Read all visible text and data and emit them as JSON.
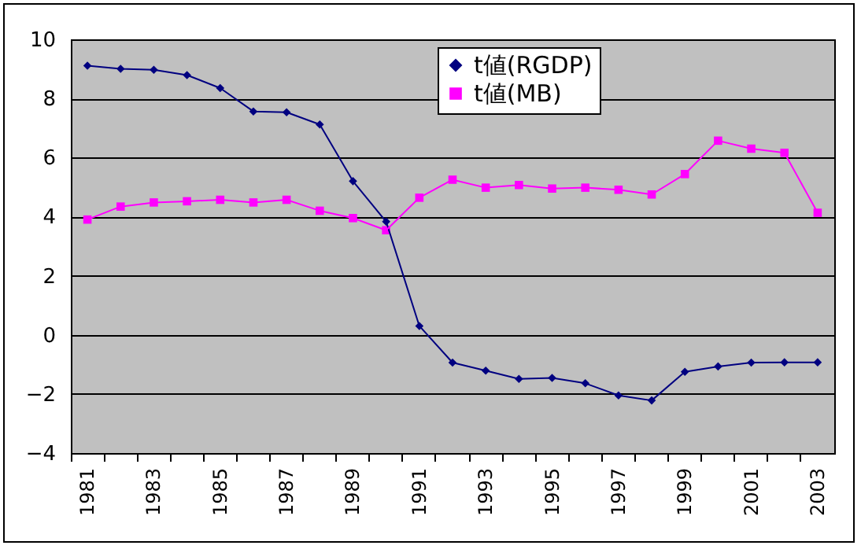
{
  "chart_data": {
    "type": "line",
    "categories": [
      "1981",
      null,
      "1983",
      null,
      "1985",
      null,
      "1987",
      null,
      "1989",
      null,
      "1991",
      null,
      "1993",
      null,
      "1995",
      null,
      "1997",
      null,
      "1999",
      null,
      "2001",
      null,
      "2003"
    ],
    "series": [
      {
        "name": "t値(RGDP)",
        "color": "#000080",
        "marker": "diamond",
        "values": [
          9.11,
          9.0,
          8.97,
          8.79,
          8.35,
          7.56,
          7.53,
          7.12,
          5.2,
          3.83,
          0.3,
          -0.94,
          -1.21,
          -1.49,
          -1.46,
          -1.64,
          -2.05,
          -2.22,
          -1.25,
          -1.07,
          -0.94,
          -0.93,
          -0.93
        ]
      },
      {
        "name": "t値(MB)",
        "color": "#ff00ff",
        "marker": "square",
        "values": [
          3.9,
          4.34,
          4.48,
          4.52,
          4.57,
          4.48,
          4.57,
          4.2,
          3.95,
          3.54,
          4.64,
          5.25,
          4.98,
          5.07,
          4.95,
          4.98,
          4.91,
          4.75,
          5.44,
          6.57,
          6.3,
          6.16,
          4.13
        ]
      }
    ],
    "ylim": [
      -4,
      10
    ],
    "yticks": [
      -4,
      -2,
      0,
      2,
      4,
      6,
      8,
      10
    ],
    "grid": "y",
    "legend": "top",
    "line_style": "solid"
  }
}
